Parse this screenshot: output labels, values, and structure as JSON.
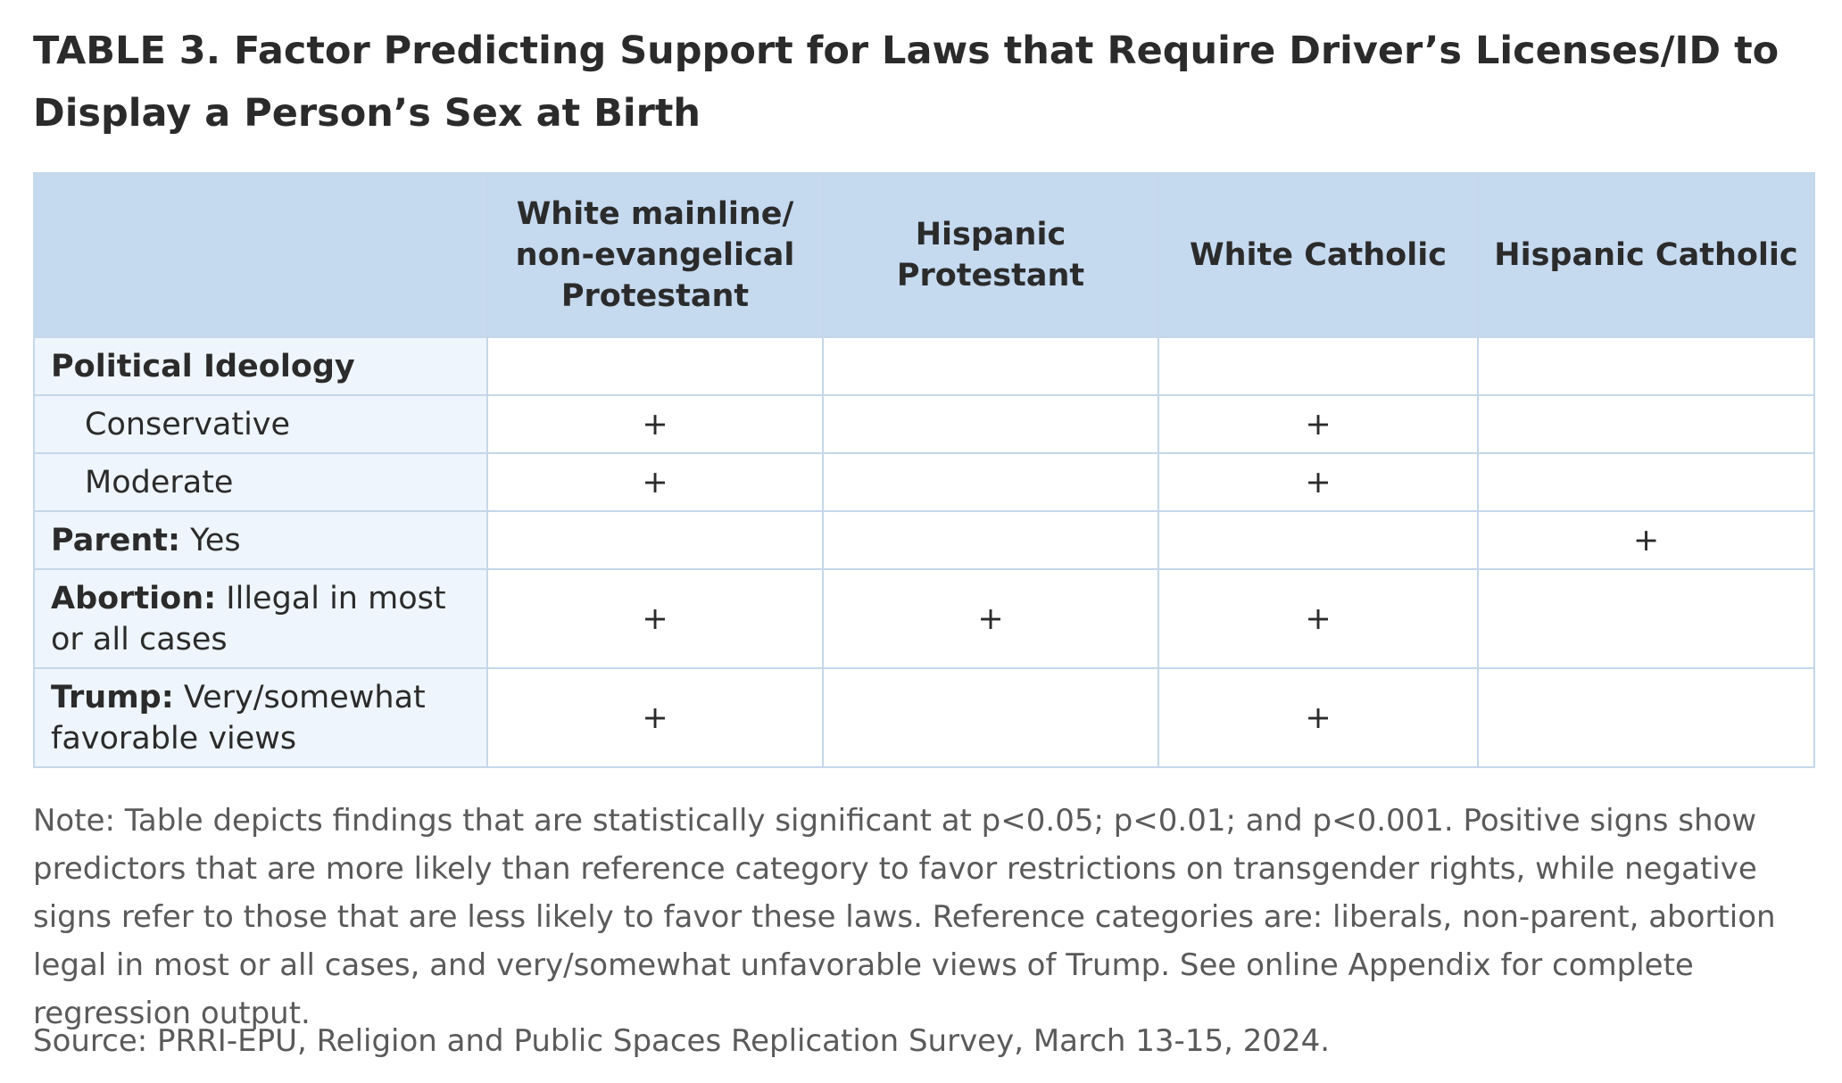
{
  "title": "TABLE 3.  Factor Predicting Support for Laws that Require Driver’s Licenses/ID to Display a Person’s Sex at Birth",
  "table": {
    "columns": [
      "White mainline/ non-evangelical Protestant",
      "Hispanic Protestant",
      "White Catholic",
      "Hispanic Catholic"
    ],
    "rows": [
      {
        "label_bold": "Political Ideology",
        "label_rest": "",
        "values": [
          "",
          "",
          "",
          ""
        ]
      },
      {
        "label_bold": "",
        "label_rest": "Conservative",
        "values": [
          "+",
          "",
          "+",
          ""
        ]
      },
      {
        "label_bold": "",
        "label_rest": "Moderate",
        "values": [
          "+",
          "",
          "+",
          ""
        ]
      },
      {
        "label_bold": "Parent:",
        "label_rest": " Yes",
        "values": [
          "",
          "",
          "",
          "+"
        ]
      },
      {
        "label_bold": "Abortion:",
        "label_rest": " Illegal in most or all cases",
        "values": [
          "+",
          "+",
          "+",
          ""
        ]
      },
      {
        "label_bold": "Trump:",
        "label_rest": " Very/somewhat favorable views",
        "values": [
          "+",
          "",
          "+",
          ""
        ]
      }
    ]
  },
  "note": "Note: Table depicts findings that are statistically significant at p<0.05; p<0.01; and p<0.001. Positive signs show predictors that are more likely than reference category to favor restrictions on transgender rights, while negative signs refer to those that are less likely to favor these laws. Reference categories are: liberals, non-parent, abortion legal in most or all cases, and very/somewhat unfavorable views of Trump. See online Appendix for complete regression output.",
  "source": "Source: PRRI-EPU, Religion and Public Spaces Replication Survey, March 13-15, 2024."
}
